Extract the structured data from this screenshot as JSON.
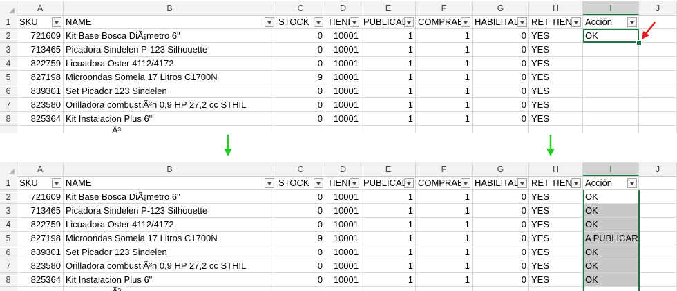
{
  "columns": [
    "A",
    "B",
    "C",
    "D",
    "E",
    "F",
    "G",
    "H",
    "I",
    "J"
  ],
  "row_numbers": [
    "1",
    "2",
    "3",
    "4",
    "5",
    "6",
    "7",
    "8"
  ],
  "headers": [
    "SKU",
    "NAME",
    "STOCK",
    "TIEND",
    "PUBLICAD",
    "COMPRAB",
    "HABILITAD",
    "RET TIEND",
    "Acción"
  ],
  "data_rows": [
    [
      "721609",
      "Kit Base Bosca DiÃ¡metro 6\"",
      "0",
      "10001",
      "1",
      "1",
      "0",
      "YES"
    ],
    [
      "713465",
      "Picadora Sindelen P-123 Silhouette",
      "0",
      "10001",
      "1",
      "1",
      "0",
      "YES"
    ],
    [
      "822759",
      "Licuadora Oster 4112/4172",
      "0",
      "10001",
      "1",
      "1",
      "0",
      "YES"
    ],
    [
      "827198",
      "Microondas Somela 17 Litros C1700N",
      "9",
      "10001",
      "1",
      "1",
      "0",
      "YES"
    ],
    [
      "839301",
      "Set Picador 123 Sindelen",
      "0",
      "10001",
      "1",
      "1",
      "0",
      "YES"
    ],
    [
      "823580",
      "Orilladora combustiÃ³n 0,9 HP 27,2 cc STHIL",
      "0",
      "10001",
      "1",
      "1",
      "0",
      "YES"
    ],
    [
      "825364",
      "Kit Instalacion Plus 6\"",
      "0",
      "10001",
      "1",
      "1",
      "0",
      "YES"
    ]
  ],
  "partial_row_text": "Ã³",
  "top_accion": [
    "OK",
    "",
    "",
    "",
    "",
    "",
    ""
  ],
  "bottom_accion": [
    "OK",
    "OK",
    "OK",
    "A PUBLICAR",
    "OK",
    "OK",
    "OK"
  ],
  "colors": {
    "selection_green": "#217346",
    "arrow_green": "#22cc22",
    "arrow_red": "#e21b1b",
    "fill_gray": "#c8c8c8"
  }
}
